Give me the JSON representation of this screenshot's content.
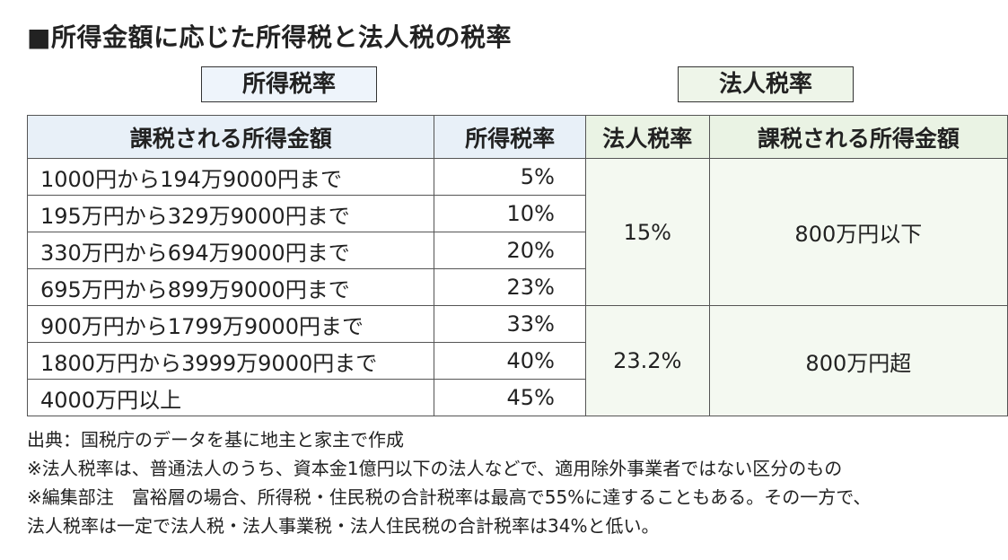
{
  "title": "■所得金額に応じた所得税と法人税の税率",
  "labels": {
    "income_tax_rate": "所得税率",
    "corporate_tax_rate": "法人税率"
  },
  "table": {
    "headers": {
      "income_amount": "課税される所得金額",
      "income_rate": "所得税率",
      "corp_rate": "法人税率",
      "corp_amount": "課税される所得金額"
    },
    "income_rows": [
      {
        "amount": "1000円から194万9000円まで",
        "rate": "5%"
      },
      {
        "amount": "195万円から329万9000円まで",
        "rate": "10%"
      },
      {
        "amount": "330万円から694万9000円まで",
        "rate": "20%"
      },
      {
        "amount": "695万円から899万9000円まで",
        "rate": "23%"
      },
      {
        "amount": "900万円から1799万9000円まで",
        "rate": "33%"
      },
      {
        "amount": "1800万円から3999万9000円まで",
        "rate": "40%"
      },
      {
        "amount": "4000万円以上",
        "rate": "45%"
      }
    ],
    "corp_rows": [
      {
        "rate": "15%",
        "amount": "800万円以下"
      },
      {
        "rate": "23.2%",
        "amount": "800万円超"
      }
    ]
  },
  "notes": {
    "source": "出典：国税庁のデータを基に地主と家主で作成",
    "note1": "※法人税率は、普通法人のうち、資本金1億円以下の法人などで、適用除外事業者ではない区分のもの",
    "note2": "※編集部注　富裕層の場合、所得税・住民税の合計税率は最高で55%に達することもある。その一方で、",
    "note3": "法人税率は一定で法人税・法人事業税・法人住民税の合計税率は34%と低い。"
  }
}
